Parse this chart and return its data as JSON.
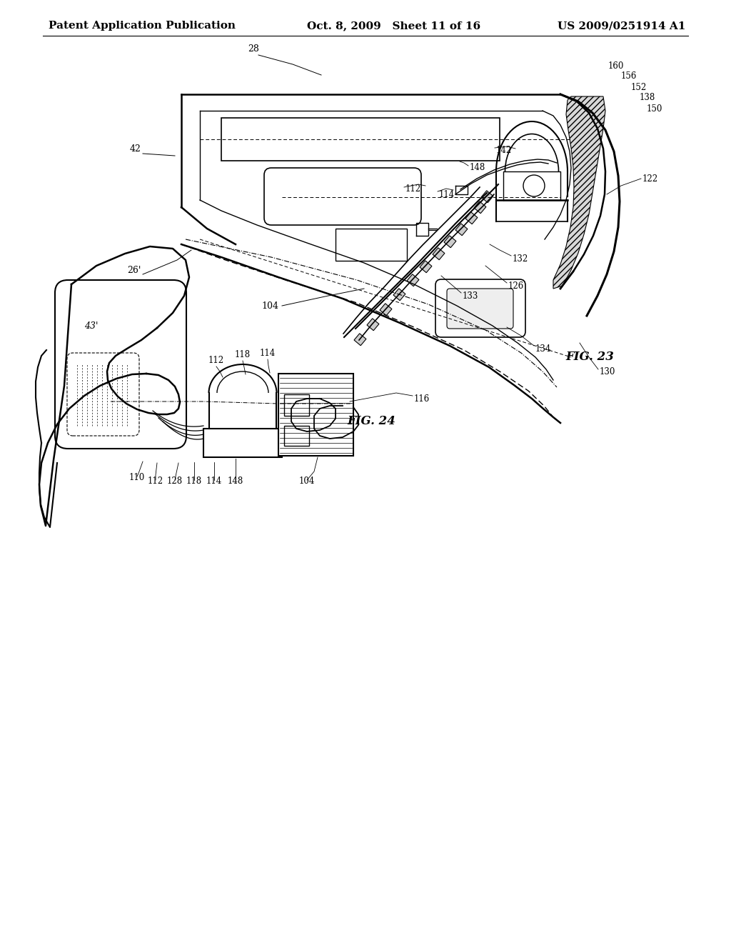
{
  "background_color": "#ffffff",
  "header_left": "Patent Application Publication",
  "header_center": "Oct. 8, 2009   Sheet 11 of 16",
  "header_right": "US 2009/0251914 A1",
  "header_fontsize": 11,
  "fig23_label": "FIG. 23",
  "fig24_label": "FIG. 24",
  "line_color": "#000000"
}
